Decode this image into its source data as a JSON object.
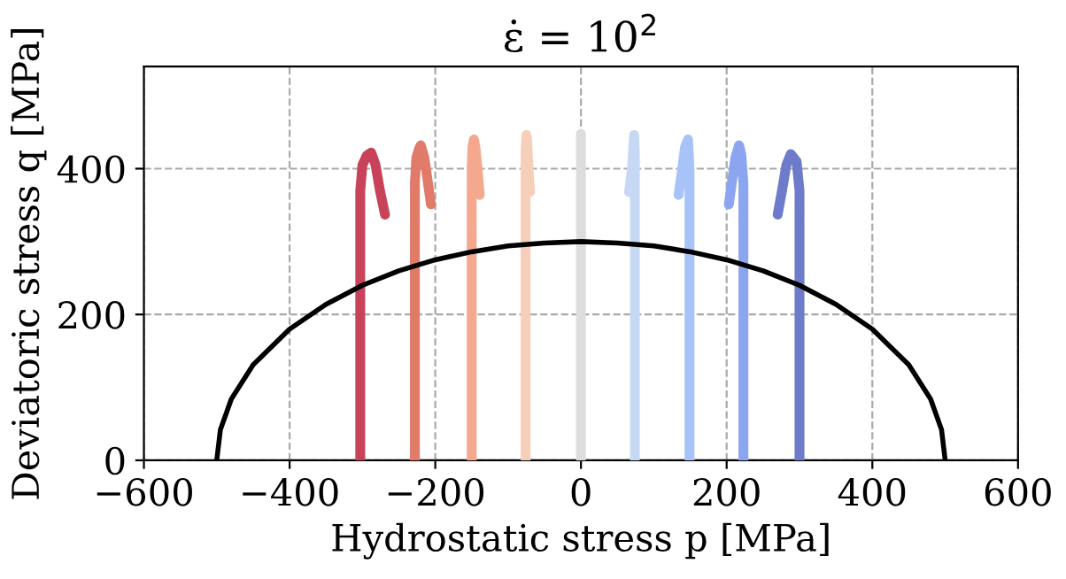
{
  "chart_data": {
    "type": "line",
    "title": "ε̇ = 10$^{2}$",
    "xlabel": "Hydrostatic stress p [MPa]",
    "ylabel": "Deviatoric stress q [MPa]",
    "xlim": [
      -600,
      600
    ],
    "ylim": [
      0,
      540
    ],
    "xticks": [
      {
        "value": -600,
        "label": "−600"
      },
      {
        "value": -400,
        "label": "−400"
      },
      {
        "value": -200,
        "label": "−200"
      },
      0,
      200,
      400,
      600
    ],
    "yticks": [
      0,
      200,
      400
    ],
    "grid": true,
    "legend": false,
    "marker": "none",
    "line_style": "solid",
    "series": [
      {
        "color": "#000000",
        "x": [
          -500,
          -495,
          -480,
          -450,
          -400,
          -350,
          -300,
          -250,
          -200,
          -150,
          -100,
          -50,
          0,
          50,
          100,
          150,
          200,
          250,
          300,
          350,
          400,
          450,
          480,
          495,
          500
        ],
        "values": [
          0,
          42,
          84,
          131,
          180,
          214,
          240,
          260,
          275,
          286,
          294,
          298,
          300,
          298,
          294,
          286,
          275,
          260,
          240,
          214,
          180,
          131,
          84,
          42,
          0
        ]
      },
      {
        "color": "#c8435a",
        "x": [
          -303,
          -303,
          -300,
          -294,
          -288,
          -282,
          -276,
          -269
        ],
        "values": [
          0,
          370,
          405,
          418,
          422,
          405,
          370,
          337
        ]
      },
      {
        "color": "#e07b6a",
        "x": [
          -228,
          -228,
          -226,
          -222,
          -220,
          -215,
          -210,
          -206
        ],
        "values": [
          0,
          380,
          415,
          428,
          432,
          415,
          380,
          351
        ]
      },
      {
        "color": "#f4a88e",
        "x": [
          -150,
          -150,
          -149,
          -147,
          -145,
          -142,
          -139
        ],
        "values": [
          0,
          400,
          430,
          440,
          430,
          400,
          364
        ]
      },
      {
        "color": "#f6cfbb",
        "x": [
          -76,
          -76,
          -75,
          -74,
          -72,
          -70
        ],
        "values": [
          0,
          420,
          446,
          440,
          400,
          368
        ]
      },
      {
        "color": "#dddddd",
        "x": [
          0,
          0,
          0
        ],
        "values": [
          0,
          440,
          448
        ]
      },
      {
        "color": "#c6d8f4",
        "x": [
          74,
          74,
          73,
          70,
          66
        ],
        "values": [
          0,
          420,
          446,
          400,
          368
        ]
      },
      {
        "color": "#a8c3f8",
        "x": [
          149,
          149,
          147,
          143,
          139,
          134
        ],
        "values": [
          0,
          400,
          440,
          430,
          400,
          364
        ]
      },
      {
        "color": "#8ba5f0",
        "x": [
          223,
          223,
          220,
          217,
          212,
          207,
          203
        ],
        "values": [
          0,
          380,
          420,
          432,
          415,
          380,
          351
        ]
      },
      {
        "color": "#6d7bca",
        "x": [
          300,
          300,
          296,
          288,
          282,
          276,
          270
        ],
        "values": [
          0,
          370,
          410,
          420,
          405,
          370,
          337
        ]
      }
    ]
  }
}
